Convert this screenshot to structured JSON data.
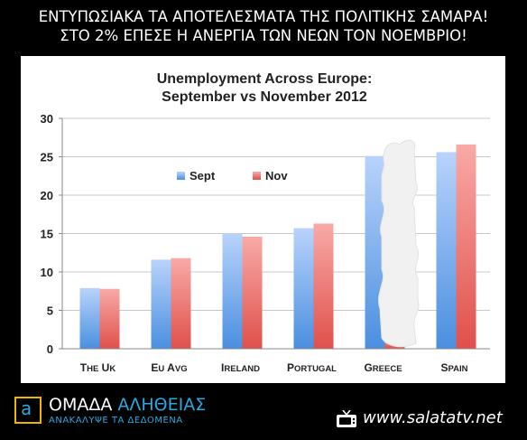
{
  "headline": {
    "line1": "ΕΝΤΥΠΩΣΙΑΚΑ ΤΑ ΑΠΟΤΕΛΕΣΜΑΤΑ ΤΗΣ ΠΟΛΙΤΙΚΗΣ ΣΑΜΑΡΑ!",
    "line2": "ΣΤΟ 2% ΕΠΕΣΕ Η ΑΝΕΡΓΙΑ ΤΩΝ ΝΕΩΝ ΤΟΝ ΝΟΕΜΒΡΙΟ!"
  },
  "chart_data": {
    "type": "bar",
    "title": "Unemployment Across Europe:",
    "subtitle": "September vs November 2012",
    "categories": [
      "The UK",
      "EU Avg",
      "Ireland",
      "Portugal",
      "Greece",
      "Spain"
    ],
    "series": [
      {
        "name": "Sept",
        "values": [
          7.9,
          11.6,
          15.0,
          15.7,
          25.1,
          25.6
        ]
      },
      {
        "name": "Nov",
        "values": [
          7.8,
          11.8,
          14.6,
          16.3,
          2.0,
          26.6
        ]
      }
    ],
    "ylim": [
      0,
      30
    ],
    "yticks": [
      0,
      5,
      10,
      15,
      20,
      25,
      30
    ],
    "legend_position": "upper-left inside plot",
    "colors": {
      "Sept": "#4a8fe0",
      "Nov": "#e45a55"
    },
    "grid": "horizontal",
    "annotation": "white brush-stroke overlay covering the Greece bars"
  },
  "footer": {
    "brand_prefix": "ΟΜΑΔΑ",
    "brand_highlight": "ΑΛΗΘΕΙΑΣ",
    "tagline": "ΑΝΑΚΑΛΥΨΕ ΤΑ ΔΕΔΟΜΕΝΑ",
    "logo_letter": "a",
    "site_url": "www.salatatv.net"
  }
}
